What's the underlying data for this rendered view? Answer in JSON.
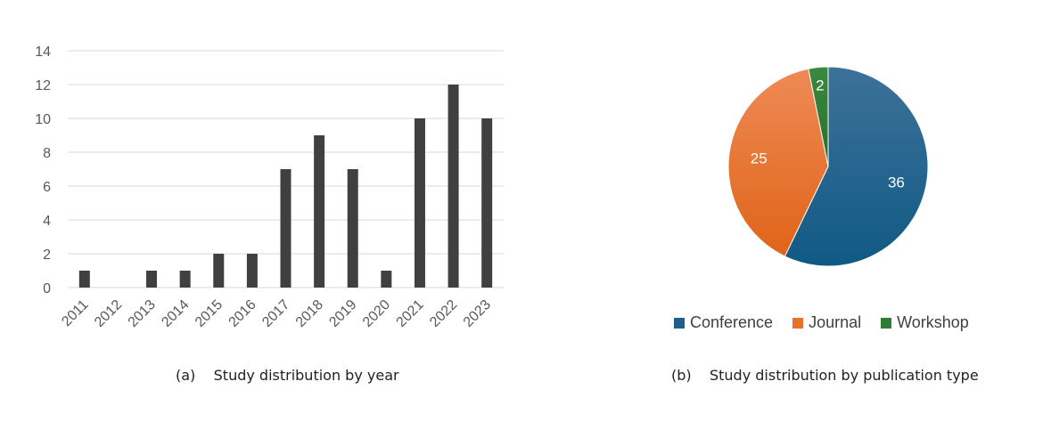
{
  "chart_data": [
    {
      "type": "bar",
      "categories": [
        "2011",
        "2012",
        "2013",
        "2014",
        "2015",
        "2016",
        "2017",
        "2018",
        "2019",
        "2020",
        "2021",
        "2022",
        "2023"
      ],
      "values": [
        1,
        0,
        1,
        1,
        2,
        2,
        7,
        9,
        7,
        1,
        10,
        12,
        10
      ],
      "yticks": [
        "0",
        "2",
        "4",
        "6",
        "8",
        "10",
        "12",
        "14"
      ],
      "ylim": [
        0,
        14
      ],
      "grid": true,
      "color": "#404040",
      "caption": "(a)    Study distribution by year"
    },
    {
      "type": "pie",
      "slices": [
        {
          "name": "Conference",
          "value": 36,
          "label": "36",
          "color": "#1f5f8b"
        },
        {
          "name": "Journal",
          "value": 25,
          "label": "25",
          "color": "#e8702a"
        },
        {
          "name": "Workshop",
          "value": 2,
          "label": "2",
          "color": "#2e7d32"
        }
      ],
      "legend_position": "bottom",
      "caption": "(b)    Study distribution by publication type"
    }
  ]
}
